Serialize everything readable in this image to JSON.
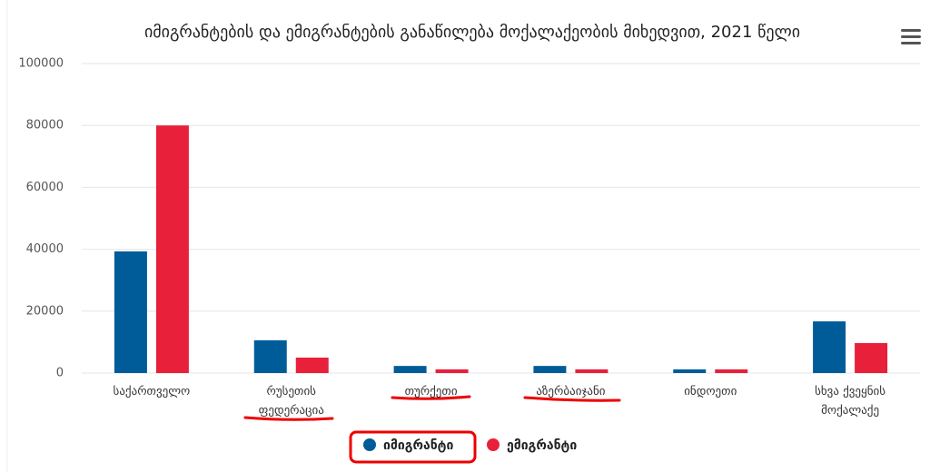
{
  "chart_data": {
    "type": "bar",
    "title": "იმიგრანტების და ემიგრანტების განაწილება მოქალაქეობის მიხედვით, 2021 წელი",
    "categories": [
      "საქართველო",
      "რუსეთის ფედერაცია",
      "თურქეთი",
      "აზერბაიჯანი",
      "ინდოეთი",
      "სხვა ქვეყნის მოქალაქე"
    ],
    "series": [
      {
        "name": "იმიგრანტი",
        "color": "#005c99",
        "values": [
          39300,
          10600,
          2300,
          2300,
          1200,
          16700
        ]
      },
      {
        "name": "ემიგრანტი",
        "color": "#e8203a",
        "values": [
          80000,
          5000,
          1200,
          1200,
          1200,
          9700
        ]
      }
    ],
    "ylim": [
      0,
      100000
    ],
    "yticks": [
      0,
      20000,
      40000,
      60000,
      80000,
      100000
    ],
    "grid": true
  }
}
